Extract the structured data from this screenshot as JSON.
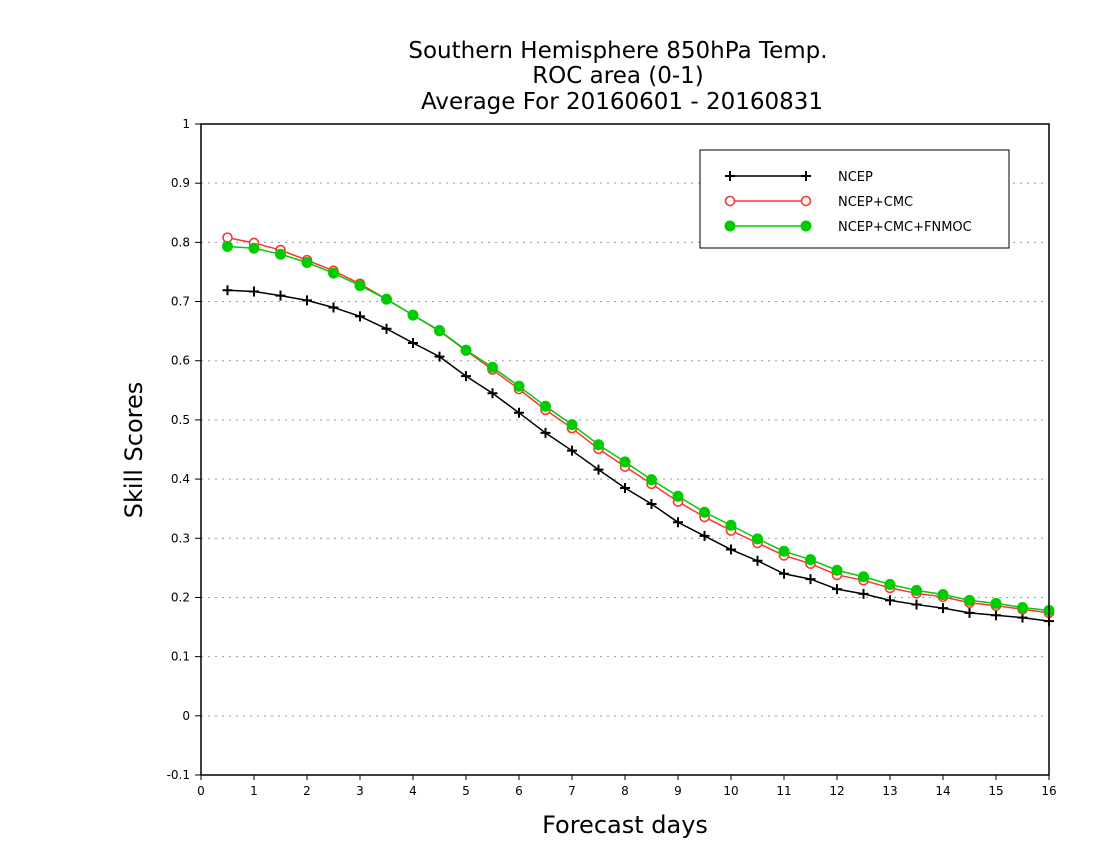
{
  "chart_data": {
    "type": "line",
    "title_lines": [
      "Southern Hemisphere 850hPa Temp.",
      "ROC area (0-1)",
      "Average For 20160601 - 20160831"
    ],
    "xlabel": "Forecast days",
    "ylabel": "Skill Scores",
    "xlim": [
      0,
      16
    ],
    "ylim": [
      -0.1,
      1
    ],
    "x_ticks": [
      0,
      1,
      2,
      3,
      4,
      5,
      6,
      7,
      8,
      9,
      10,
      11,
      12,
      13,
      14,
      15,
      16
    ],
    "y_ticks": [
      -0.1,
      0,
      0.1,
      0.2,
      0.3,
      0.4,
      0.5,
      0.6,
      0.7,
      0.8,
      0.9,
      1
    ],
    "y_tick_labels": [
      "-0.1",
      "0",
      "0.1",
      "0.2",
      "0.3",
      "0.4",
      "0.5",
      "0.6",
      "0.7",
      "0.8",
      "0.9",
      "1"
    ],
    "grid": "horizontal dotted",
    "legend_position": "top-right",
    "x": [
      0.5,
      1.0,
      1.5,
      2.0,
      2.5,
      3.0,
      3.5,
      4.0,
      4.5,
      5.0,
      5.5,
      6.0,
      6.5,
      7.0,
      7.5,
      8.0,
      8.5,
      9.0,
      9.5,
      10.0,
      10.5,
      11.0,
      11.5,
      12.0,
      12.5,
      13.0,
      13.5,
      14.0,
      14.5,
      15.0,
      15.5,
      16.0
    ],
    "series": [
      {
        "name": "NCEP",
        "color": "#000000",
        "marker": "plus",
        "values": [
          0.719,
          0.717,
          0.71,
          0.702,
          0.69,
          0.675,
          0.654,
          0.63,
          0.607,
          0.574,
          0.545,
          0.512,
          0.478,
          0.448,
          0.416,
          0.385,
          0.358,
          0.327,
          0.304,
          0.281,
          0.262,
          0.24,
          0.231,
          0.214,
          0.206,
          0.195,
          0.188,
          0.182,
          0.174,
          0.17,
          0.166,
          0.16
        ]
      },
      {
        "name": "NCEP+CMC",
        "color": "#ff3333",
        "marker": "open-circle",
        "values": [
          0.808,
          0.799,
          0.787,
          0.77,
          0.752,
          0.73,
          0.704,
          0.677,
          0.65,
          0.617,
          0.585,
          0.552,
          0.517,
          0.486,
          0.451,
          0.421,
          0.392,
          0.362,
          0.336,
          0.313,
          0.292,
          0.271,
          0.257,
          0.238,
          0.229,
          0.216,
          0.207,
          0.201,
          0.191,
          0.186,
          0.18,
          0.174
        ]
      },
      {
        "name": "NCEP+CMC+FNMOC",
        "color": "#00cc00",
        "marker": "filled-circle",
        "values": [
          0.793,
          0.79,
          0.78,
          0.766,
          0.748,
          0.727,
          0.704,
          0.677,
          0.651,
          0.618,
          0.589,
          0.557,
          0.523,
          0.492,
          0.458,
          0.429,
          0.399,
          0.371,
          0.344,
          0.322,
          0.299,
          0.278,
          0.264,
          0.246,
          0.235,
          0.222,
          0.212,
          0.205,
          0.195,
          0.19,
          0.183,
          0.178
        ]
      }
    ]
  }
}
